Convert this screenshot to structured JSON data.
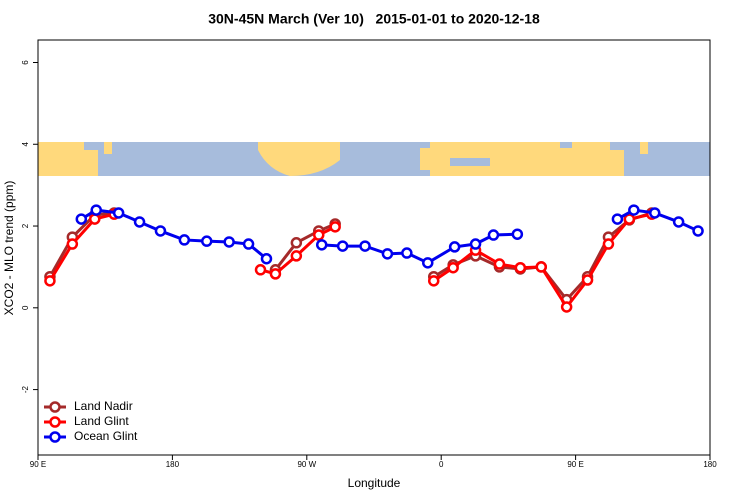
{
  "chart_data": {
    "type": "line",
    "title": "30N-45N March (Ver 10)   2015-01-01 to 2020-12-18",
    "x_label": "Longitude",
    "y_label": "XCO2 - MLO trend (ppm)",
    "xlim": [
      90,
      540
    ],
    "ylim": [
      -3.6,
      6.55
    ],
    "xticks": [
      {
        "value": 90,
        "label": "90 E"
      },
      180,
      {
        "value": 270,
        "label": "90 W"
      },
      {
        "value": 360,
        "label": "0"
      },
      {
        "value": 450,
        "label": "90 E"
      },
      {
        "value": 540,
        "label": "180"
      }
    ],
    "yticks": [
      -2,
      0,
      2,
      4,
      6
    ],
    "legend": "bottom-left",
    "series": [
      {
        "name": "Land Nadir",
        "color": "#a52a2a",
        "x": [
          98,
          113,
          128,
          141,
          null,
          249,
          263,
          278,
          289,
          null,
          355,
          368,
          383,
          399,
          413,
          427,
          444,
          458,
          472,
          486,
          501
        ],
        "values": [
          0.76,
          1.73,
          2.27,
          2.32,
          null,
          0.93,
          1.59,
          1.88,
          2.05,
          null,
          0.76,
          1.05,
          1.27,
          1.0,
          0.95,
          1.0,
          0.2,
          0.76,
          1.73,
          2.15,
          2.32
        ]
      },
      {
        "name": "Land Glint",
        "color": "#ff0000",
        "x": [
          98,
          113,
          128,
          141,
          null,
          239,
          249,
          263,
          278,
          289,
          null,
          355,
          368,
          383,
          399,
          413,
          427,
          444,
          458,
          472,
          486,
          501
        ],
        "values": [
          0.66,
          1.56,
          2.17,
          2.29,
          null,
          0.93,
          0.83,
          1.27,
          1.78,
          1.98,
          null,
          0.66,
          0.98,
          1.41,
          1.07,
          0.98,
          1.0,
          0.02,
          0.68,
          1.56,
          2.17,
          2.29
        ]
      },
      {
        "name": "Ocean Glint",
        "color": "#0000ee",
        "x": [
          119,
          129,
          144,
          158,
          172,
          188,
          203,
          218,
          231,
          243,
          null,
          280,
          294,
          309,
          324,
          337,
          351,
          369,
          383,
          395,
          411,
          null,
          478,
          489,
          503,
          519,
          532
        ],
        "values": [
          2.17,
          2.39,
          2.32,
          2.1,
          1.88,
          1.66,
          1.63,
          1.61,
          1.56,
          1.2,
          null,
          1.54,
          1.51,
          1.51,
          1.32,
          1.34,
          1.1,
          1.49,
          1.56,
          1.78,
          1.8,
          null,
          2.17,
          2.39,
          2.32,
          2.1,
          1.88
        ]
      }
    ]
  }
}
